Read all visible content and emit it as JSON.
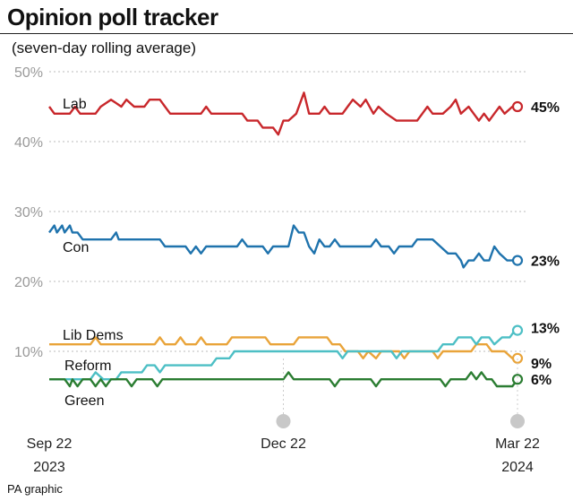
{
  "title": "Opinion poll tracker",
  "subtitle": "(seven-day rolling average)",
  "credit": "PA graphic",
  "chart_data": {
    "type": "line",
    "ylim": [
      0,
      50
    ],
    "yticks": [
      10,
      20,
      30,
      40,
      50
    ],
    "ytick_labels": [
      "10%",
      "20%",
      "30%",
      "40%",
      "50%"
    ],
    "grid": true,
    "xlim": [
      "2023-09-22",
      "2024-03-22"
    ],
    "xticks": [
      {
        "date": "2023-09-22",
        "line1": "Sep 22",
        "line2": "2023"
      },
      {
        "date": "2023-12-22",
        "line1": "Dec 22",
        "line2": ""
      },
      {
        "date": "2024-03-22",
        "line1": "Mar 22",
        "line2": "2024"
      }
    ],
    "series": [
      {
        "name": "Lab",
        "color": "#c8272b",
        "end_label": "45%",
        "points": [
          [
            "2023-09-22",
            45
          ],
          [
            "2023-09-24",
            44
          ],
          [
            "2023-09-30",
            44
          ],
          [
            "2023-10-02",
            45
          ],
          [
            "2023-10-04",
            44
          ],
          [
            "2023-10-10",
            44
          ],
          [
            "2023-10-12",
            45
          ],
          [
            "2023-10-16",
            46
          ],
          [
            "2023-10-20",
            45
          ],
          [
            "2023-10-22",
            46
          ],
          [
            "2023-10-25",
            45
          ],
          [
            "2023-10-29",
            45
          ],
          [
            "2023-10-31",
            46
          ],
          [
            "2023-11-04",
            46
          ],
          [
            "2023-11-06",
            45
          ],
          [
            "2023-11-08",
            44
          ],
          [
            "2023-11-20",
            44
          ],
          [
            "2023-11-22",
            45
          ],
          [
            "2023-11-24",
            44
          ],
          [
            "2023-12-06",
            44
          ],
          [
            "2023-12-08",
            43
          ],
          [
            "2023-12-12",
            43
          ],
          [
            "2023-12-14",
            42
          ],
          [
            "2023-12-18",
            42
          ],
          [
            "2023-12-20",
            41
          ],
          [
            "2023-12-22",
            43
          ],
          [
            "2023-12-24",
            43
          ],
          [
            "2023-12-27",
            44
          ],
          [
            "2023-12-30",
            47
          ],
          [
            "2024-01-01",
            44
          ],
          [
            "2024-01-05",
            44
          ],
          [
            "2024-01-07",
            45
          ],
          [
            "2024-01-09",
            44
          ],
          [
            "2024-01-14",
            44
          ],
          [
            "2024-01-16",
            45
          ],
          [
            "2024-01-18",
            46
          ],
          [
            "2024-01-21",
            45
          ],
          [
            "2024-01-23",
            46
          ],
          [
            "2024-01-26",
            44
          ],
          [
            "2024-01-28",
            45
          ],
          [
            "2024-01-31",
            44
          ],
          [
            "2024-02-04",
            43
          ],
          [
            "2024-02-12",
            43
          ],
          [
            "2024-02-14",
            44
          ],
          [
            "2024-02-16",
            45
          ],
          [
            "2024-02-18",
            44
          ],
          [
            "2024-02-22",
            44
          ],
          [
            "2024-02-25",
            45
          ],
          [
            "2024-02-27",
            46
          ],
          [
            "2024-02-29",
            44
          ],
          [
            "2024-03-03",
            45
          ],
          [
            "2024-03-05",
            44
          ],
          [
            "2024-03-07",
            43
          ],
          [
            "2024-03-09",
            44
          ],
          [
            "2024-03-11",
            43
          ],
          [
            "2024-03-13",
            44
          ],
          [
            "2024-03-15",
            45
          ],
          [
            "2024-03-17",
            44
          ],
          [
            "2024-03-20",
            45
          ],
          [
            "2024-03-22",
            45
          ]
        ]
      },
      {
        "name": "Con",
        "color": "#1f73ad",
        "end_label": "23%",
        "points": [
          [
            "2023-09-22",
            27
          ],
          [
            "2023-09-24",
            28
          ],
          [
            "2023-09-25",
            27
          ],
          [
            "2023-09-27",
            28
          ],
          [
            "2023-09-28",
            27
          ],
          [
            "2023-09-30",
            28
          ],
          [
            "2023-10-01",
            27
          ],
          [
            "2023-10-03",
            27
          ],
          [
            "2023-10-05",
            26
          ],
          [
            "2023-10-16",
            26
          ],
          [
            "2023-10-18",
            27
          ],
          [
            "2023-10-19",
            26
          ],
          [
            "2023-11-04",
            26
          ],
          [
            "2023-11-06",
            25
          ],
          [
            "2023-11-14",
            25
          ],
          [
            "2023-11-16",
            24
          ],
          [
            "2023-11-18",
            25
          ],
          [
            "2023-11-20",
            24
          ],
          [
            "2023-11-22",
            25
          ],
          [
            "2023-12-04",
            25
          ],
          [
            "2023-12-06",
            26
          ],
          [
            "2023-12-08",
            25
          ],
          [
            "2023-12-14",
            25
          ],
          [
            "2023-12-16",
            24
          ],
          [
            "2023-12-18",
            25
          ],
          [
            "2023-12-24",
            25
          ],
          [
            "2023-12-26",
            28
          ],
          [
            "2023-12-28",
            27
          ],
          [
            "2023-12-30",
            27
          ],
          [
            "2024-01-01",
            25
          ],
          [
            "2024-01-03",
            24
          ],
          [
            "2024-01-05",
            26
          ],
          [
            "2024-01-07",
            25
          ],
          [
            "2024-01-09",
            25
          ],
          [
            "2024-01-11",
            26
          ],
          [
            "2024-01-13",
            25
          ],
          [
            "2024-01-25",
            25
          ],
          [
            "2024-01-27",
            26
          ],
          [
            "2024-01-29",
            25
          ],
          [
            "2024-02-01",
            25
          ],
          [
            "2024-02-03",
            24
          ],
          [
            "2024-02-05",
            25
          ],
          [
            "2024-02-10",
            25
          ],
          [
            "2024-02-12",
            26
          ],
          [
            "2024-02-18",
            26
          ],
          [
            "2024-02-21",
            25
          ],
          [
            "2024-02-24",
            24
          ],
          [
            "2024-02-27",
            24
          ],
          [
            "2024-02-29",
            23
          ],
          [
            "2024-03-01",
            22
          ],
          [
            "2024-03-03",
            23
          ],
          [
            "2024-03-05",
            23
          ],
          [
            "2024-03-07",
            24
          ],
          [
            "2024-03-09",
            23
          ],
          [
            "2024-03-11",
            23
          ],
          [
            "2024-03-13",
            25
          ],
          [
            "2024-03-15",
            24
          ],
          [
            "2024-03-18",
            23
          ],
          [
            "2024-03-22",
            23
          ]
        ]
      },
      {
        "name": "Lib Dems",
        "color": "#e9a43a",
        "end_label": "",
        "points": [
          [
            "2023-09-22",
            11
          ],
          [
            "2023-10-01",
            11
          ],
          [
            "2023-10-04",
            11
          ],
          [
            "2023-10-08",
            11
          ],
          [
            "2023-10-10",
            12
          ],
          [
            "2023-10-12",
            11
          ],
          [
            "2023-11-02",
            11
          ],
          [
            "2023-11-04",
            12
          ],
          [
            "2023-11-06",
            11
          ],
          [
            "2023-11-10",
            11
          ],
          [
            "2023-11-12",
            12
          ],
          [
            "2023-11-14",
            11
          ],
          [
            "2023-11-18",
            11
          ],
          [
            "2023-11-20",
            12
          ],
          [
            "2023-11-22",
            11
          ],
          [
            "2023-11-30",
            11
          ],
          [
            "2023-12-02",
            12
          ],
          [
            "2023-12-15",
            12
          ],
          [
            "2023-12-17",
            11
          ],
          [
            "2023-12-26",
            11
          ],
          [
            "2023-12-28",
            12
          ],
          [
            "2024-01-08",
            12
          ],
          [
            "2024-01-10",
            11
          ],
          [
            "2024-01-13",
            11
          ],
          [
            "2024-01-15",
            10
          ],
          [
            "2024-01-20",
            10
          ],
          [
            "2024-01-22",
            9
          ],
          [
            "2024-01-24",
            10
          ],
          [
            "2024-01-27",
            9
          ],
          [
            "2024-01-29",
            10
          ],
          [
            "2024-02-05",
            10
          ],
          [
            "2024-02-07",
            9
          ],
          [
            "2024-02-09",
            10
          ],
          [
            "2024-02-18",
            10
          ],
          [
            "2024-02-20",
            9
          ],
          [
            "2024-02-22",
            10
          ],
          [
            "2024-03-04",
            10
          ],
          [
            "2024-03-06",
            11
          ],
          [
            "2024-03-10",
            11
          ],
          [
            "2024-03-12",
            10
          ],
          [
            "2024-03-17",
            10
          ],
          [
            "2024-03-20",
            9
          ],
          [
            "2024-03-22",
            9
          ]
        ]
      },
      {
        "name": "Reform",
        "color": "#4dbfc5",
        "end_label": "13%",
        "points": [
          [
            "2023-09-22",
            6
          ],
          [
            "2023-10-08",
            6
          ],
          [
            "2023-10-10",
            7
          ],
          [
            "2023-10-13",
            6
          ],
          [
            "2023-10-18",
            6
          ],
          [
            "2023-10-20",
            7
          ],
          [
            "2023-10-28",
            7
          ],
          [
            "2023-10-30",
            8
          ],
          [
            "2023-11-02",
            8
          ],
          [
            "2023-11-04",
            7
          ],
          [
            "2023-11-06",
            8
          ],
          [
            "2023-11-24",
            8
          ],
          [
            "2023-11-26",
            9
          ],
          [
            "2023-12-01",
            9
          ],
          [
            "2023-12-03",
            10
          ],
          [
            "2024-01-12",
            10
          ],
          [
            "2024-01-14",
            9
          ],
          [
            "2024-01-16",
            10
          ],
          [
            "2024-02-02",
            10
          ],
          [
            "2024-02-04",
            9
          ],
          [
            "2024-02-06",
            10
          ],
          [
            "2024-02-20",
            10
          ],
          [
            "2024-02-22",
            11
          ],
          [
            "2024-02-26",
            11
          ],
          [
            "2024-02-28",
            12
          ],
          [
            "2024-03-04",
            12
          ],
          [
            "2024-03-06",
            11
          ],
          [
            "2024-03-08",
            12
          ],
          [
            "2024-03-11",
            12
          ],
          [
            "2024-03-13",
            11
          ],
          [
            "2024-03-16",
            12
          ],
          [
            "2024-03-19",
            12
          ],
          [
            "2024-03-21",
            13
          ],
          [
            "2024-03-22",
            13
          ]
        ]
      },
      {
        "name": "Green",
        "color": "#2b7d32",
        "end_label": "6%",
        "points": [
          [
            "2023-09-22",
            6
          ],
          [
            "2023-09-28",
            6
          ],
          [
            "2023-09-30",
            5
          ],
          [
            "2023-10-01",
            6
          ],
          [
            "2023-10-03",
            5
          ],
          [
            "2023-10-05",
            6
          ],
          [
            "2023-10-08",
            6
          ],
          [
            "2023-10-10",
            5
          ],
          [
            "2023-10-12",
            6
          ],
          [
            "2023-10-14",
            5
          ],
          [
            "2023-10-16",
            6
          ],
          [
            "2023-10-22",
            6
          ],
          [
            "2023-10-24",
            5
          ],
          [
            "2023-10-26",
            6
          ],
          [
            "2023-11-01",
            6
          ],
          [
            "2023-11-03",
            5
          ],
          [
            "2023-11-05",
            6
          ],
          [
            "2023-12-22",
            6
          ],
          [
            "2023-12-24",
            7
          ],
          [
            "2023-12-26",
            6
          ],
          [
            "2024-01-09",
            6
          ],
          [
            "2024-01-11",
            5
          ],
          [
            "2024-01-13",
            6
          ],
          [
            "2024-01-25",
            6
          ],
          [
            "2024-01-27",
            5
          ],
          [
            "2024-01-29",
            6
          ],
          [
            "2024-02-21",
            6
          ],
          [
            "2024-02-23",
            5
          ],
          [
            "2024-02-25",
            6
          ],
          [
            "2024-03-02",
            6
          ],
          [
            "2024-03-04",
            7
          ],
          [
            "2024-03-06",
            6
          ],
          [
            "2024-03-08",
            7
          ],
          [
            "2024-03-10",
            6
          ],
          [
            "2024-03-12",
            6
          ],
          [
            "2024-03-14",
            5
          ],
          [
            "2024-03-20",
            5
          ],
          [
            "2024-03-22",
            6
          ]
        ]
      }
    ],
    "annotations": [
      {
        "series": "Lab",
        "text": "Lab"
      },
      {
        "series": "Con",
        "text": "Con"
      },
      {
        "series": "Lib Dems",
        "text": "Lib Dems"
      },
      {
        "series": "Reform",
        "text": "Reform"
      },
      {
        "series": "Green",
        "text": "Green"
      },
      {
        "series": "Lib Dems",
        "text": "9%",
        "kind": "end"
      }
    ]
  }
}
